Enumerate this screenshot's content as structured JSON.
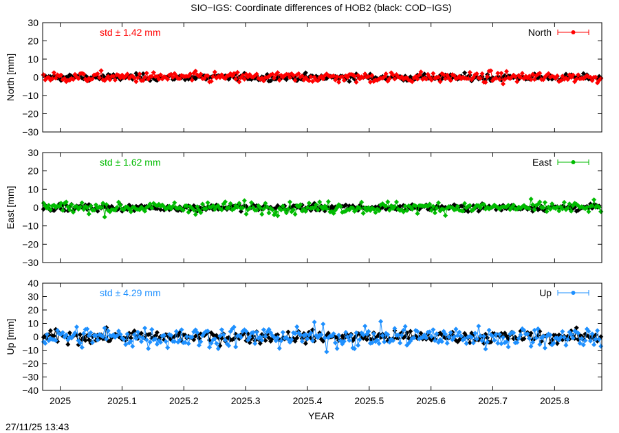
{
  "title": "SIO−IGS: Coordinate differences of HOB2 (black: COD−IGS)",
  "timestamp": "27/11/25 13:43",
  "chart_data": [
    {
      "type": "line",
      "panel": "north",
      "ylabel": "North [mm]",
      "ylim": [
        -30,
        30
      ],
      "yticks": [
        30,
        20,
        10,
        0,
        -10,
        -20,
        -30
      ],
      "legend": "North",
      "legend_position": "top-right",
      "std_text": "std ± 1.42 mm",
      "std": 1.42,
      "color": "#ff0000",
      "reference_color": "#000000",
      "series": [
        {
          "name": "North",
          "color": "#ff0000",
          "noise_std": 1.42
        },
        {
          "color": "#000000",
          "noise_std": 0.9
        }
      ]
    },
    {
      "type": "line",
      "panel": "east",
      "ylabel": "East [mm]",
      "ylim": [
        -30,
        30
      ],
      "yticks": [
        30,
        20,
        10,
        0,
        -10,
        -20,
        -30
      ],
      "legend": "East",
      "legend_position": "top-right",
      "std_text": "std ± 1.62 mm",
      "std": 1.62,
      "color": "#00bb00",
      "reference_color": "#000000",
      "series": [
        {
          "name": "East",
          "color": "#00bb00",
          "noise_std": 1.62
        },
        {
          "color": "#000000",
          "noise_std": 0.9
        }
      ]
    },
    {
      "type": "line",
      "panel": "up",
      "ylabel": "Up [mm]",
      "ylim": [
        -40,
        40
      ],
      "yticks": [
        40,
        30,
        20,
        10,
        0,
        -10,
        -20,
        -30,
        -40
      ],
      "legend": "Up",
      "legend_position": "top-right",
      "std_text": "std ± 4.29 mm",
      "std": 4.29,
      "color": "#1e90ff",
      "reference_color": "#000000",
      "series": [
        {
          "name": "Up",
          "color": "#1e90ff",
          "noise_std": 4.29
        },
        {
          "color": "#000000",
          "noise_std": 2.2
        }
      ]
    }
  ],
  "xaxis": {
    "label": "YEAR",
    "xlim": [
      2024.9715,
      2025.8764
    ],
    "ticks": [
      2025,
      2025.1,
      2025.2,
      2025.3,
      2025.4,
      2025.5,
      2025.6,
      2025.7,
      2025.8
    ],
    "tick_labels": [
      "2025",
      "2025.1",
      "2025.2",
      "2025.3",
      "2025.4",
      "2025.5",
      "2025.6",
      "2025.7",
      "2025.8"
    ]
  }
}
